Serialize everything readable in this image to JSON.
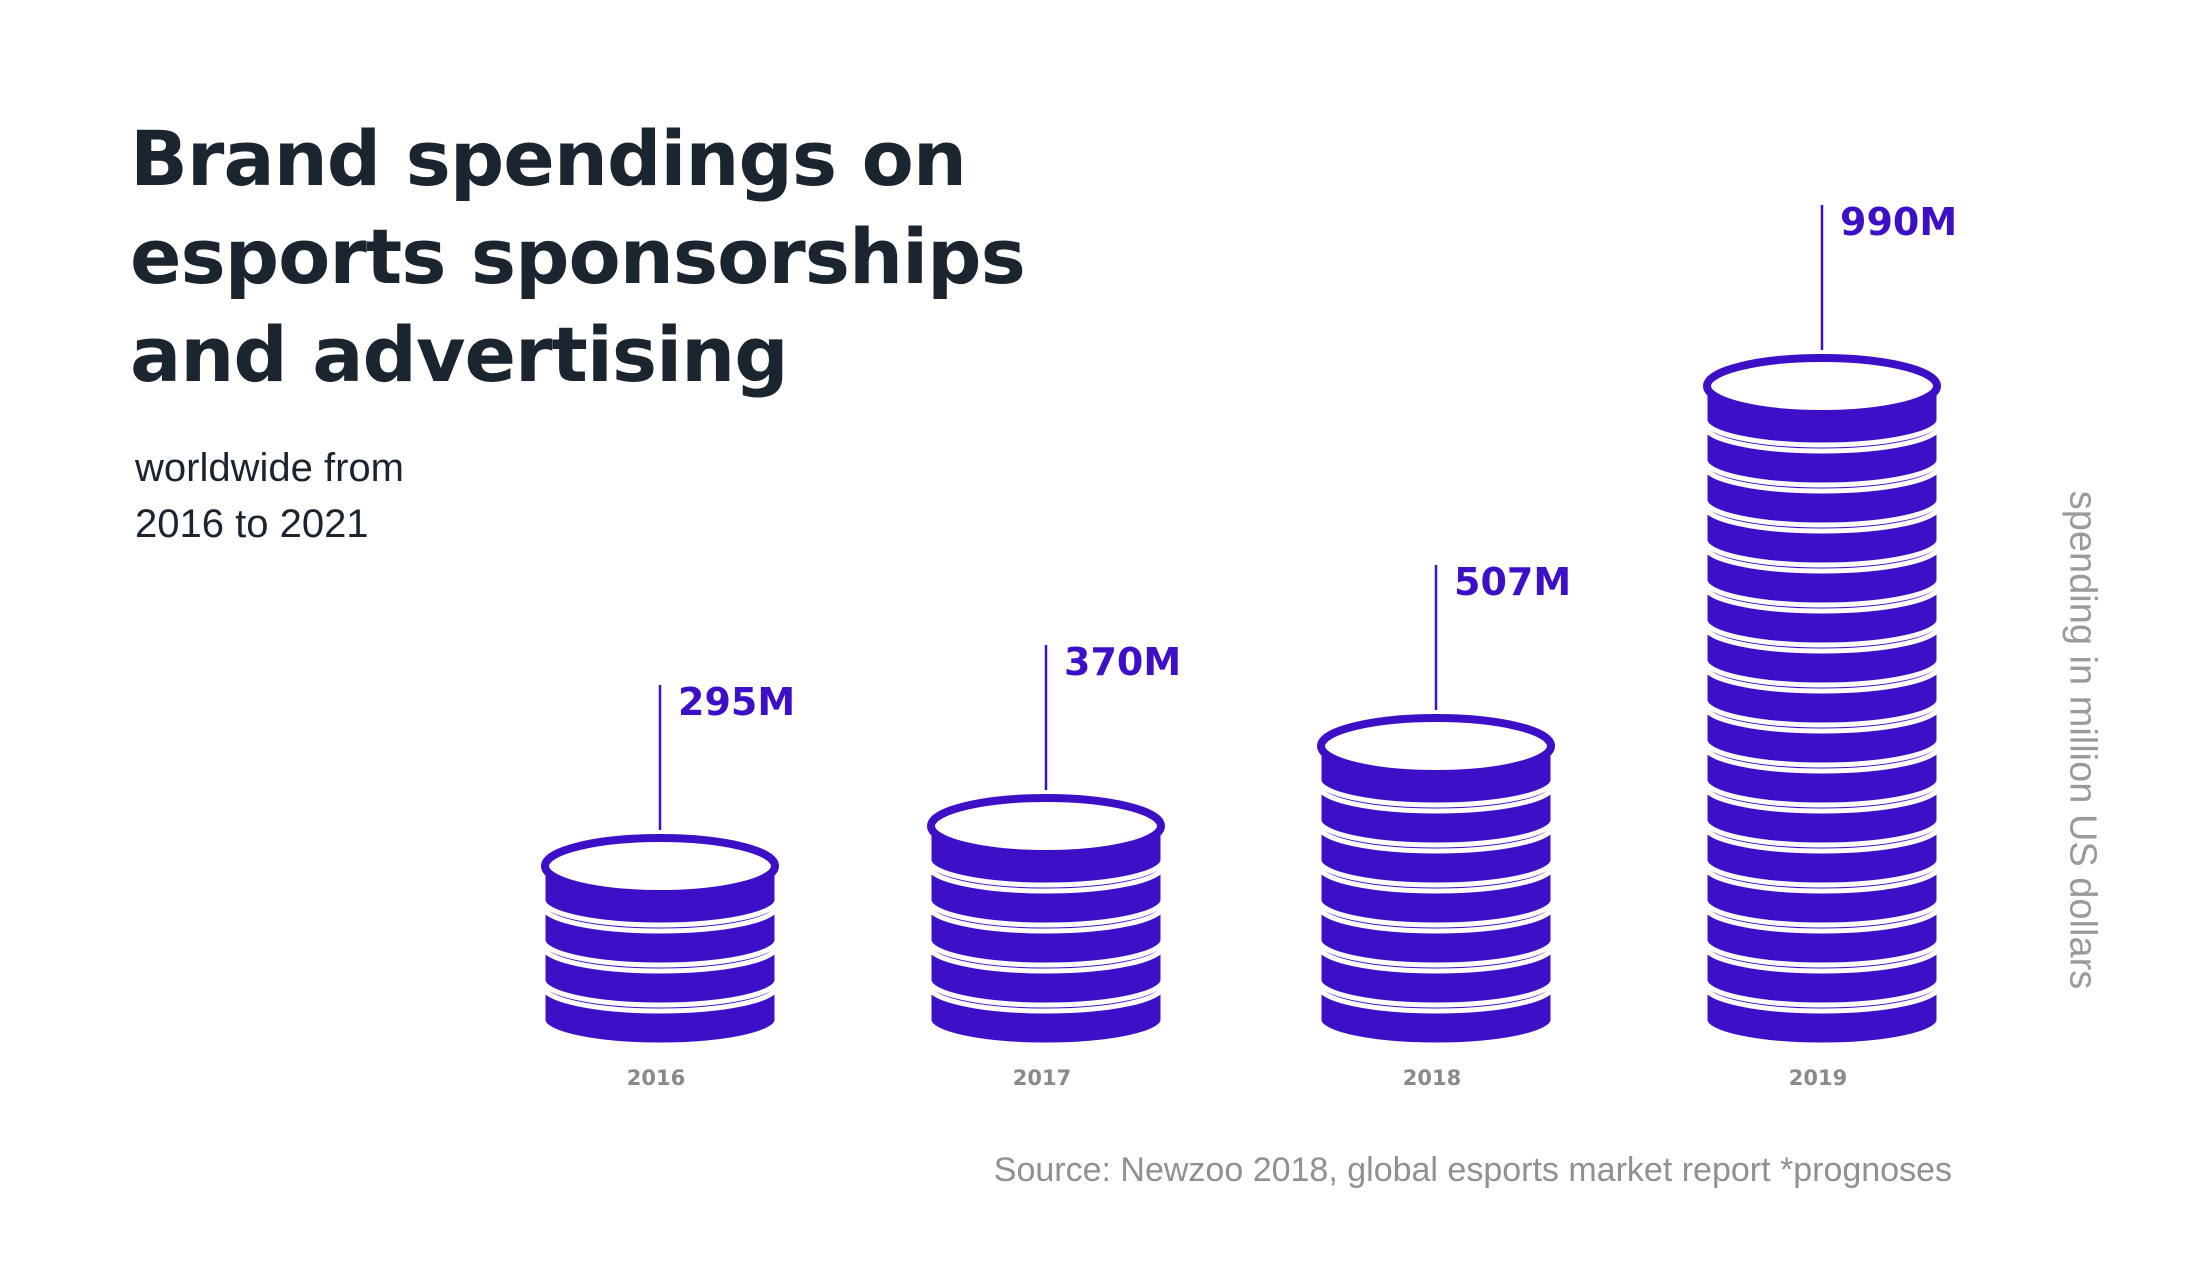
{
  "title_lines": [
    "Brand spendings on",
    "esports sponsorships",
    "and advertising"
  ],
  "subtitle_lines": [
    "worldwide from",
    "2016 to 2021"
  ],
  "source": "Source: Newzoo 2018, global esports market report *prognoses",
  "colors": {
    "coin": "#3d10c8",
    "coin_separator": "#ffffff",
    "title": "#1b2530",
    "muted": "#909090"
  },
  "chart_data": {
    "type": "bar",
    "style": "stacked-coin pictograph",
    "categories": [
      "2016",
      "2017",
      "2018",
      "2019"
    ],
    "values": [
      295,
      370,
      507,
      990
    ],
    "value_labels": [
      "295M",
      "370M",
      "507M",
      "990M"
    ],
    "coin_counts": [
      4,
      5,
      7,
      16
    ],
    "ylabel": "spending in million US dollars",
    "unit": "million US dollars",
    "legend": "none",
    "grid": false
  }
}
